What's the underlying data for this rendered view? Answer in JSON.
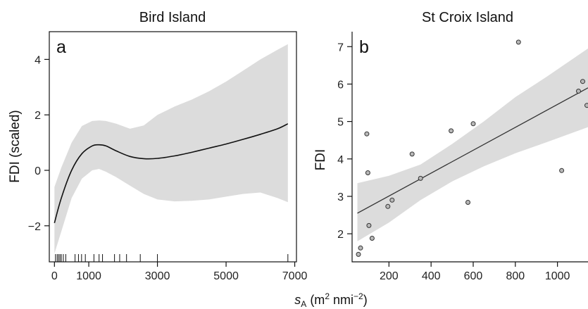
{
  "xlabel": {
    "base": "s",
    "sub": "A",
    "mid": " (m",
    "sup1": "2",
    "mid2": " nmi",
    "sup2": "−2",
    "end": ")"
  },
  "chart_data": [
    {
      "type": "line",
      "panel": "a",
      "title": "Bird Island",
      "ylabel": "FDI (scaled)",
      "xlim": [
        -150,
        7050
      ],
      "ylim": [
        -3.3,
        5.0
      ],
      "xticks": [
        0,
        1000,
        3000,
        5000,
        7000
      ],
      "xtick_labels": [
        "0",
        "1000",
        "3000",
        "5000",
        "7000"
      ],
      "yticks": [
        -2,
        0,
        2,
        4
      ],
      "ytick_labels": [
        "−2",
        "0",
        "2",
        "4"
      ],
      "fit": {
        "x": [
          0,
          200,
          500,
          800,
          1100,
          1300,
          1500,
          1800,
          2200,
          2600,
          3000,
          3500,
          4000,
          4500,
          5000,
          5500,
          6000,
          6500,
          6800
        ],
        "y": [
          -1.9,
          -1.0,
          0.0,
          0.6,
          0.88,
          0.92,
          0.88,
          0.7,
          0.5,
          0.42,
          0.43,
          0.52,
          0.65,
          0.8,
          0.95,
          1.12,
          1.3,
          1.5,
          1.68
        ]
      },
      "ci": {
        "x": [
          0,
          200,
          500,
          800,
          1100,
          1300,
          1500,
          1800,
          2200,
          2600,
          3000,
          3500,
          4000,
          4500,
          5000,
          5500,
          6000,
          6500,
          6800
        ],
        "lower": [
          -3.0,
          -2.2,
          -1.0,
          -0.3,
          0.0,
          0.05,
          -0.05,
          -0.25,
          -0.55,
          -0.85,
          -1.05,
          -1.12,
          -1.1,
          -1.05,
          -0.95,
          -0.85,
          -0.8,
          -1.0,
          -1.15
        ],
        "upper": [
          -0.6,
          0.1,
          1.0,
          1.6,
          1.78,
          1.8,
          1.78,
          1.68,
          1.5,
          1.62,
          2.0,
          2.3,
          2.55,
          2.85,
          3.2,
          3.6,
          4.0,
          4.35,
          4.55
        ]
      },
      "rug": [
        30,
        80,
        120,
        160,
        200,
        260,
        330,
        600,
        700,
        790,
        900,
        1150,
        1300,
        1400,
        1750,
        1900,
        2100,
        2500,
        3000,
        6800
      ]
    },
    {
      "type": "scatter",
      "panel": "b",
      "title": "St Croix Island",
      "ylabel": "FDI",
      "xlim": [
        25,
        1145
      ],
      "ylim": [
        1.25,
        7.4
      ],
      "xticks": [
        200,
        400,
        600,
        800,
        1000
      ],
      "xtick_labels": [
        "200",
        "400",
        "600",
        "800",
        "1000"
      ],
      "yticks": [
        2,
        3,
        4,
        5,
        6,
        7
      ],
      "ytick_labels": [
        "2",
        "3",
        "4",
        "5",
        "6",
        "7"
      ],
      "points": [
        {
          "x": 55,
          "y": 1.45
        },
        {
          "x": 65,
          "y": 1.62
        },
        {
          "x": 95,
          "y": 4.67
        },
        {
          "x": 100,
          "y": 3.63
        },
        {
          "x": 105,
          "y": 2.22
        },
        {
          "x": 120,
          "y": 1.88
        },
        {
          "x": 195,
          "y": 2.73
        },
        {
          "x": 215,
          "y": 2.9
        },
        {
          "x": 310,
          "y": 4.13
        },
        {
          "x": 350,
          "y": 3.48
        },
        {
          "x": 495,
          "y": 4.75
        },
        {
          "x": 575,
          "y": 2.84
        },
        {
          "x": 600,
          "y": 4.94
        },
        {
          "x": 815,
          "y": 7.12
        },
        {
          "x": 1020,
          "y": 3.69
        },
        {
          "x": 1100,
          "y": 5.81
        },
        {
          "x": 1120,
          "y": 6.07
        },
        {
          "x": 1140,
          "y": 5.43
        }
      ],
      "fit": {
        "x": [
          50,
          1145
        ],
        "y": [
          2.55,
          5.9
        ]
      },
      "ci": {
        "x": [
          50,
          200,
          350,
          500,
          650,
          800,
          950,
          1145
        ],
        "lower": [
          1.8,
          2.3,
          2.9,
          3.4,
          3.8,
          4.15,
          4.45,
          4.85
        ],
        "upper": [
          3.35,
          3.55,
          3.85,
          4.4,
          5.0,
          5.65,
          6.2,
          6.95
        ]
      }
    }
  ]
}
